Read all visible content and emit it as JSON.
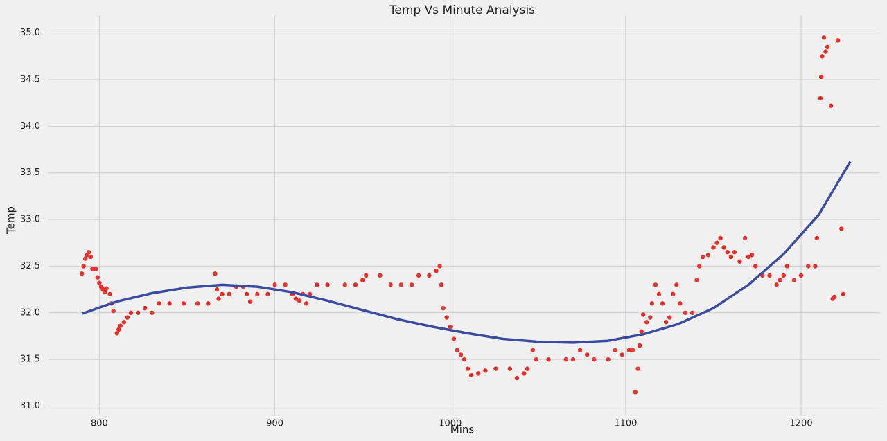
{
  "chart_data": {
    "type": "scatter",
    "title": "Temp Vs Minute Analysis",
    "x_label": "Mins",
    "y_label": "Temp",
    "xlim": [
      771,
      1245
    ],
    "ylim": [
      30.9,
      35.19
    ],
    "xticks": [
      800,
      900,
      1000,
      1100,
      1200
    ],
    "yticks": [
      {
        "value": 31,
        "label": "31.0"
      },
      {
        "value": 31.5,
        "label": "31.5"
      },
      {
        "value": 32,
        "label": "32.0"
      },
      {
        "value": 32.5,
        "label": "32.5"
      },
      {
        "value": 33,
        "label": "33.0"
      },
      {
        "value": 33.5,
        "label": "33.5"
      },
      {
        "value": 34,
        "label": "34.0"
      },
      {
        "value": 34.5,
        "label": "34.5"
      },
      {
        "value": 35,
        "label": "35.0"
      }
    ],
    "grid": true,
    "series": [
      {
        "type": "scatter",
        "color": "#e8302a",
        "x": [
          790,
          791,
          792,
          793,
          794,
          795,
          796,
          798,
          799,
          800,
          801,
          802,
          803,
          804,
          806,
          807,
          808,
          810,
          811,
          812,
          814,
          816,
          818,
          822,
          826,
          830,
          834,
          840,
          848,
          856,
          862,
          866,
          867,
          868,
          870,
          874,
          878,
          882,
          884,
          886,
          890,
          896,
          900,
          906,
          910,
          912,
          914,
          916,
          918,
          920,
          924,
          930,
          940,
          946,
          950,
          952,
          960,
          966,
          972,
          978,
          982,
          988,
          992,
          994,
          995,
          996,
          998,
          1000,
          1002,
          1004,
          1006,
          1008,
          1010,
          1012,
          1016,
          1020,
          1026,
          1034,
          1038,
          1042,
          1044,
          1047,
          1049,
          1056,
          1066,
          1070,
          1074,
          1078,
          1082,
          1090,
          1094,
          1098,
          1102,
          1104,
          1105.5,
          1107,
          1108,
          1109,
          1110,
          1112,
          1114,
          1115,
          1117,
          1119,
          1121,
          1123,
          1125,
          1127,
          1129,
          1131,
          1134,
          1138,
          1140.5,
          1142,
          1144,
          1147,
          1150,
          1152,
          1154,
          1156,
          1158,
          1160,
          1162,
          1165,
          1168,
          1170,
          1172,
          1174,
          1178,
          1182,
          1186,
          1188,
          1190,
          1192,
          1196,
          1200,
          1204,
          1208,
          1209,
          1211,
          1211.5,
          1212,
          1213,
          1214,
          1215,
          1217,
          1218,
          1219,
          1221,
          1223,
          1224
        ],
        "values": [
          32.42,
          32.5,
          32.58,
          32.62,
          32.65,
          32.6,
          32.47,
          32.47,
          32.38,
          32.32,
          32.28,
          32.25,
          32.22,
          32.26,
          32.2,
          32.1,
          32.02,
          31.78,
          31.82,
          31.86,
          31.9,
          31.95,
          32.0,
          32.0,
          32.05,
          32.0,
          32.1,
          32.1,
          32.1,
          32.1,
          32.1,
          32.42,
          32.25,
          32.15,
          32.2,
          32.2,
          32.28,
          32.28,
          32.2,
          32.12,
          32.2,
          32.2,
          32.3,
          32.3,
          32.2,
          32.15,
          32.13,
          32.2,
          32.1,
          32.2,
          32.3,
          32.3,
          32.3,
          32.3,
          32.35,
          32.4,
          32.4,
          32.3,
          32.3,
          32.3,
          32.4,
          32.4,
          32.45,
          32.5,
          32.3,
          32.05,
          31.95,
          31.85,
          31.72,
          31.6,
          31.55,
          31.5,
          31.4,
          31.33,
          31.35,
          31.38,
          31.4,
          31.4,
          31.3,
          31.35,
          31.4,
          31.6,
          31.5,
          31.5,
          31.5,
          31.5,
          31.6,
          31.55,
          31.5,
          31.5,
          31.6,
          31.55,
          31.6,
          31.6,
          31.15,
          31.4,
          31.65,
          31.8,
          31.98,
          31.9,
          31.95,
          32.1,
          32.3,
          32.2,
          32.1,
          31.9,
          31.95,
          32.2,
          32.3,
          32.1,
          32.0,
          32.0,
          32.35,
          32.5,
          32.6,
          32.62,
          32.7,
          32.75,
          32.8,
          32.7,
          32.65,
          32.6,
          32.65,
          32.55,
          32.8,
          32.6,
          32.62,
          32.5,
          32.4,
          32.4,
          32.3,
          32.35,
          32.4,
          32.5,
          32.35,
          32.4,
          32.5,
          32.5,
          32.8,
          34.3,
          34.53,
          34.75,
          34.95,
          34.8,
          34.85,
          34.22,
          32.15,
          32.17,
          34.92,
          32.9,
          32.2
        ]
      },
      {
        "type": "line",
        "color": "#3a4ba0",
        "x": [
          790,
          810,
          830,
          850,
          870,
          890,
          910,
          930,
          950,
          970,
          990,
          1010,
          1030,
          1050,
          1070,
          1090,
          1110,
          1130,
          1150,
          1170,
          1190,
          1210,
          1228
        ],
        "values": [
          31.99,
          32.12,
          32.21,
          32.27,
          32.3,
          32.28,
          32.22,
          32.13,
          32.03,
          31.93,
          31.85,
          31.78,
          31.72,
          31.69,
          31.68,
          31.7,
          31.77,
          31.88,
          32.05,
          32.3,
          32.63,
          33.05,
          33.62
        ]
      }
    ]
  }
}
